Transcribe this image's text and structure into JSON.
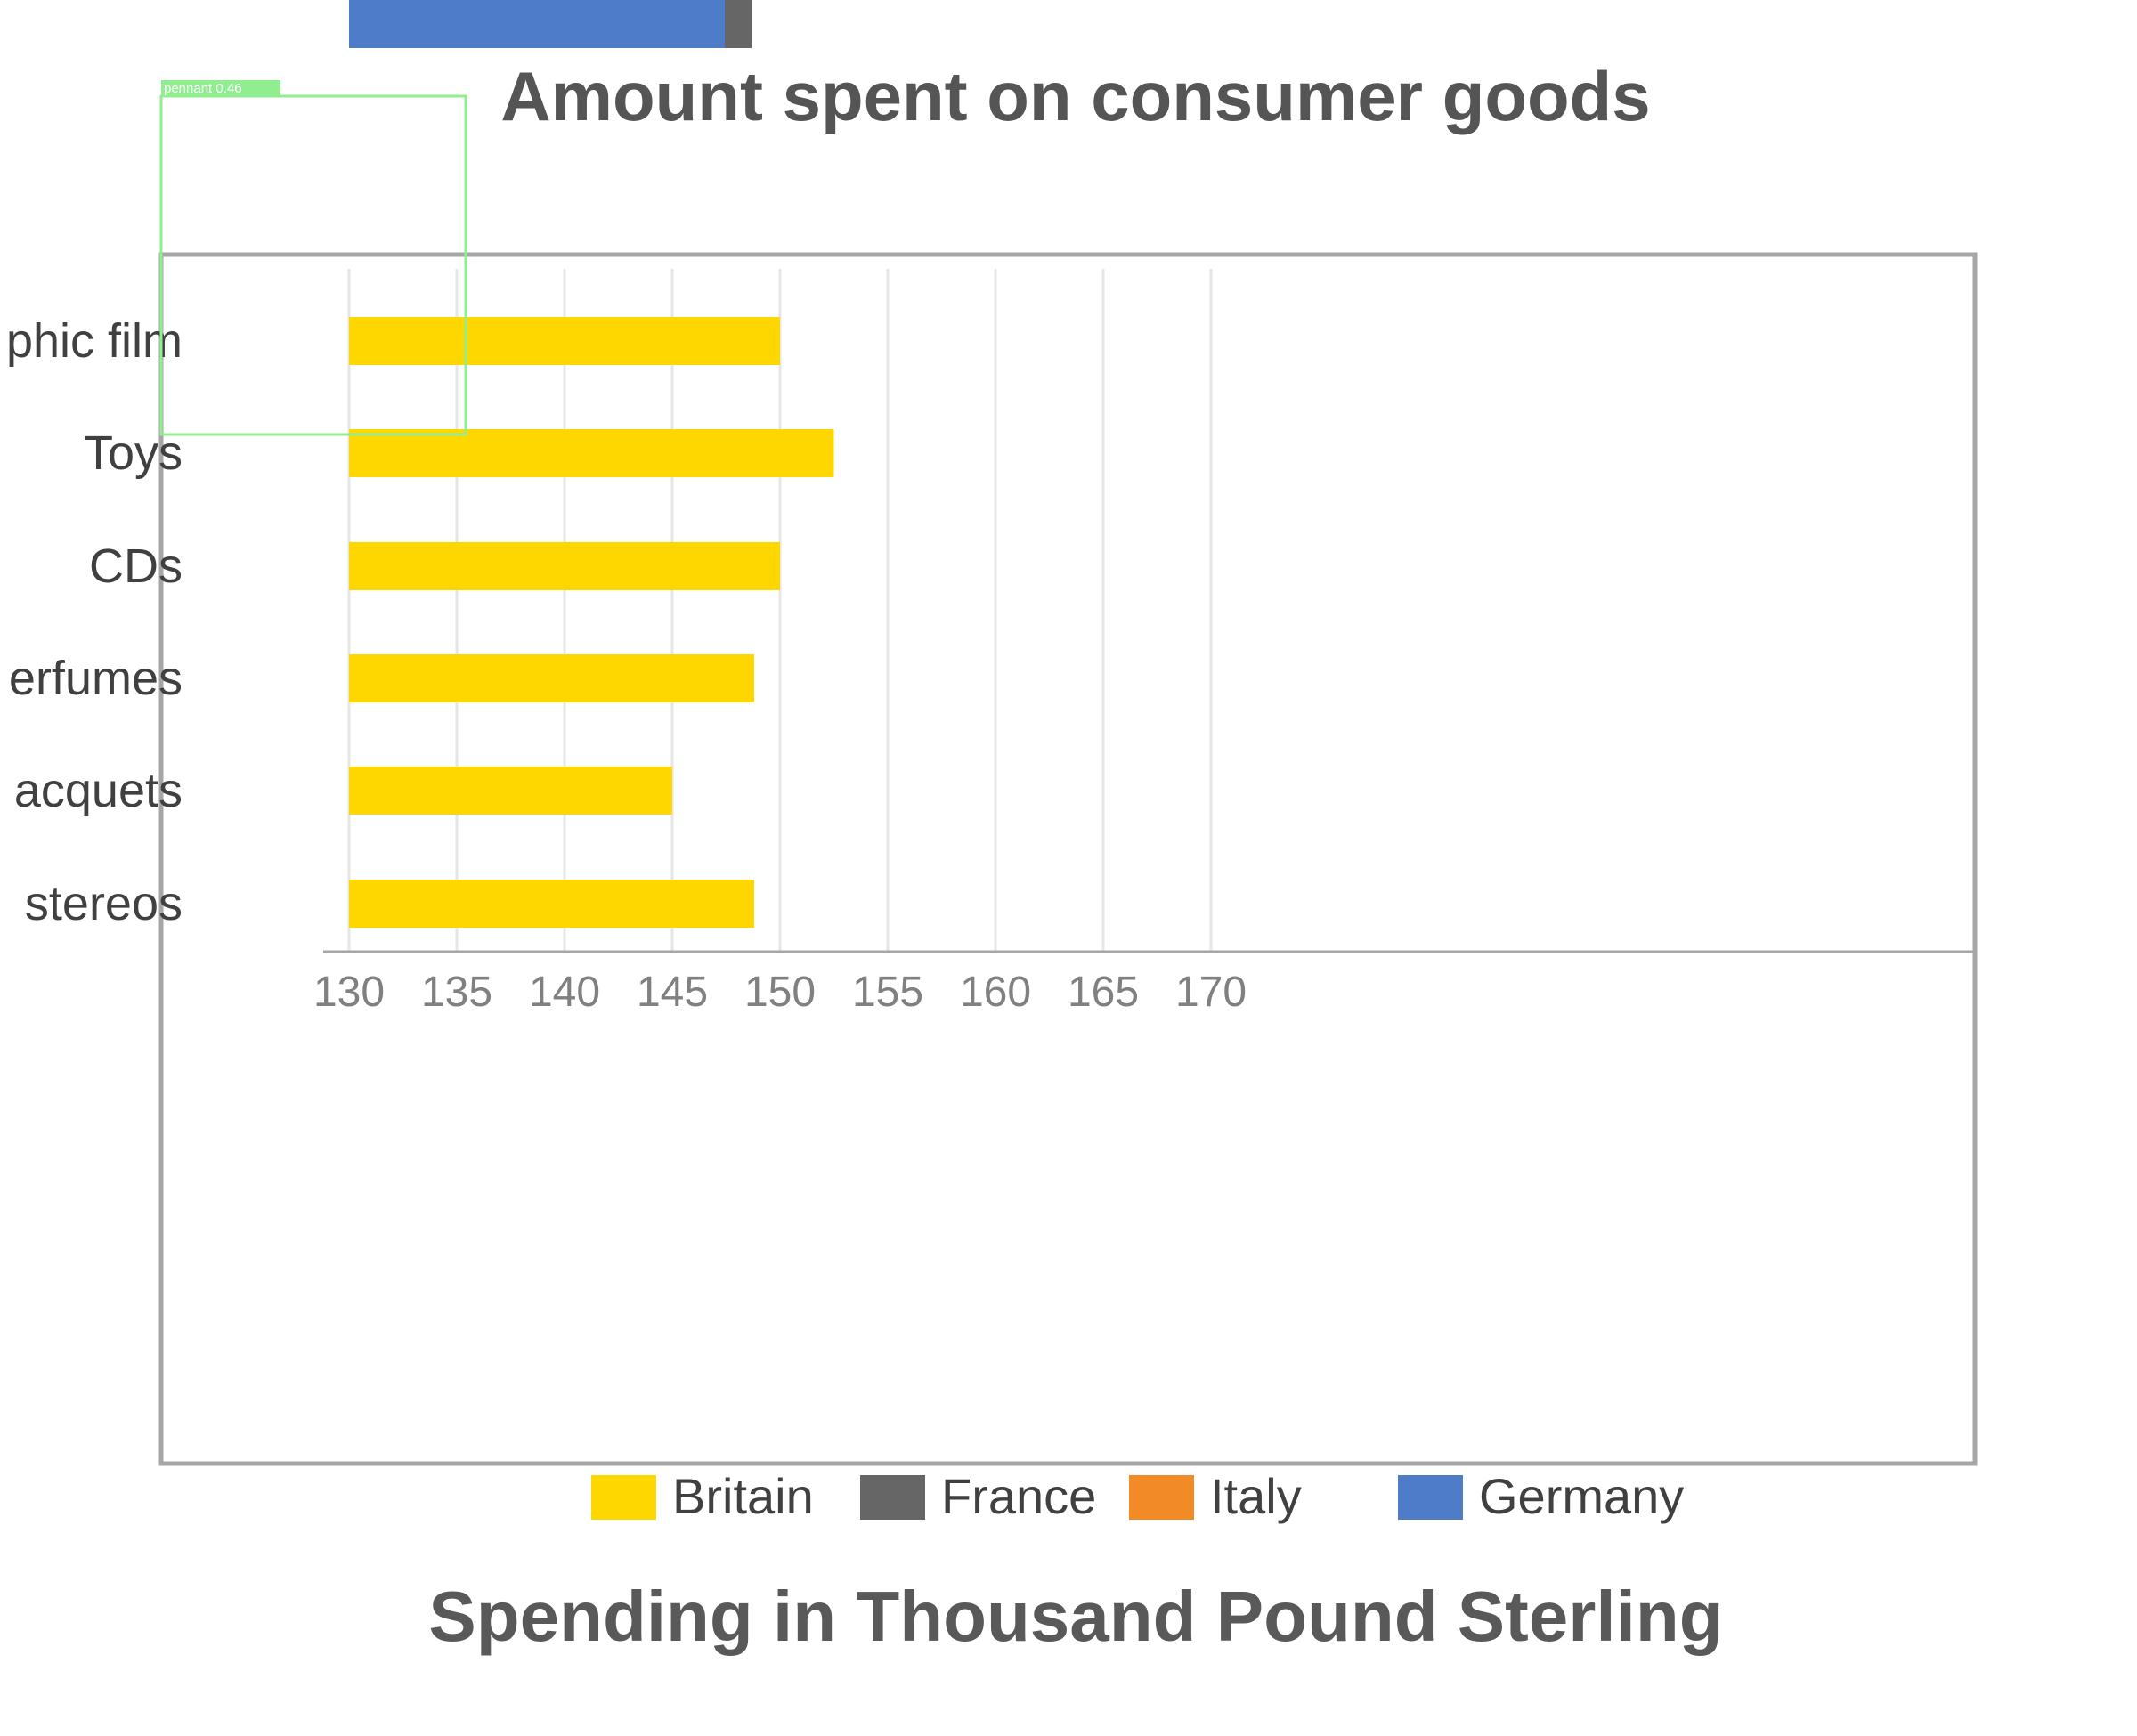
{
  "chart_data": {
    "type": "bar",
    "orientation": "horizontal",
    "title": "Amount spent on consumer goods",
    "xlabel": "Spending in Thousand Pound Sterling",
    "ylabel": "",
    "xlim": [
      130,
      170
    ],
    "x_ticks": [
      "130",
      "135",
      "140",
      "145",
      "150",
      "155",
      "160",
      "165",
      "170"
    ],
    "categories": [
      "Photographic film",
      "Toys",
      "CDs",
      "Perfumes",
      "Tennis racquets",
      "Personal stereos"
    ],
    "category_labels_visible": [
      "phic film",
      "Toys",
      "CDs",
      "erfumes",
      "acquets",
      "stereos"
    ],
    "series": [
      {
        "name": "Britain",
        "color": "#FFD700",
        "values": [
          150,
          152.5,
          150,
          148.8,
          145,
          148.8
        ]
      },
      {
        "name": "France",
        "color": "#666666",
        "values": null
      },
      {
        "name": "Italy",
        "color": "#F28A26",
        "values": null
      },
      {
        "name": "Germany",
        "color": "#4F7CC8",
        "values": null
      }
    ],
    "grid": true,
    "legend_position": "bottom",
    "overlay": {
      "label": "pennant 0.46",
      "color": "#90EE90"
    }
  }
}
